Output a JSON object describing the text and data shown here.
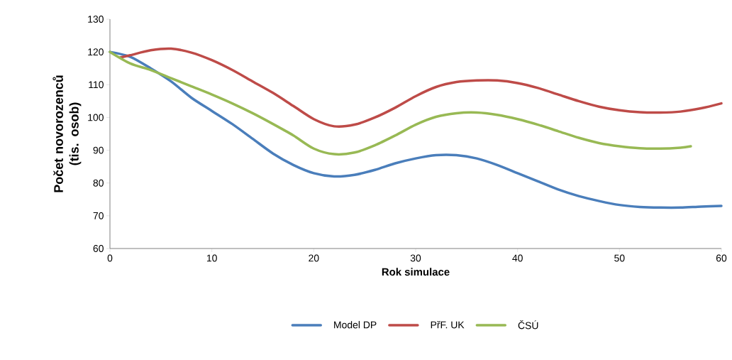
{
  "chart_data": {
    "type": "line",
    "xlabel": "Rok simulace",
    "ylabel": "Počet novorozenců (tis. osob)",
    "xlim": [
      0,
      60
    ],
    "xticks": [
      0,
      10,
      20,
      30,
      40,
      50,
      60
    ],
    "ylim": [
      60,
      130
    ],
    "yticks": [
      60,
      70,
      80,
      90,
      100,
      110,
      120,
      130
    ],
    "grid": false,
    "legend": "bottom",
    "marker": "none",
    "line_style": "solid",
    "series": [
      {
        "name": "Model DP",
        "color": "#4a7ebb",
        "x": [
          0,
          2,
          4,
          6,
          8,
          10,
          12,
          14,
          16,
          18,
          20,
          22,
          24,
          26,
          28,
          30,
          32,
          34,
          36,
          38,
          40,
          42,
          44,
          46,
          48,
          50,
          52,
          54,
          56,
          58,
          60
        ],
        "values": [
          120,
          118.5,
          115,
          111,
          106,
          102,
          98,
          93.5,
          89,
          85.5,
          83,
          82,
          82.5,
          84,
          86,
          87.5,
          88.5,
          88.5,
          87.5,
          85.5,
          83,
          80.5,
          78,
          76,
          74.5,
          73.3,
          72.7,
          72.5,
          72.5,
          72.8,
          73
        ]
      },
      {
        "name": "PřF. UK",
        "color": "#be4b48",
        "x": [
          1,
          2,
          4,
          6,
          8,
          10,
          12,
          14,
          16,
          18,
          20,
          22,
          24,
          26,
          28,
          30,
          32,
          34,
          36,
          38,
          40,
          42,
          44,
          46,
          48,
          50,
          52,
          54,
          56,
          58,
          60
        ],
        "values": [
          118.3,
          119,
          120.5,
          121,
          119.8,
          117.5,
          114.5,
          111,
          107.5,
          103.5,
          99.5,
          97.3,
          97.8,
          100,
          103,
          106.5,
          109.3,
          110.8,
          111.3,
          111.3,
          110.5,
          109,
          107,
          105,
          103.3,
          102.2,
          101.6,
          101.5,
          101.8,
          102.8,
          104.3
        ]
      },
      {
        "name": "ČSÚ",
        "color": "#98b954",
        "x": [
          0,
          2,
          4,
          6,
          8,
          10,
          12,
          14,
          16,
          18,
          20,
          22,
          24,
          26,
          28,
          30,
          32,
          34,
          36,
          38,
          40,
          42,
          44,
          46,
          48,
          50,
          52,
          54,
          56,
          57
        ],
        "values": [
          120,
          116.5,
          114.5,
          112,
          109.5,
          107,
          104.3,
          101.3,
          98,
          94.5,
          90.5,
          88.8,
          89.3,
          91.5,
          94.5,
          97.8,
          100.2,
          101.3,
          101.5,
          100.8,
          99.5,
          97.8,
          95.8,
          93.8,
          92.2,
          91.2,
          90.6,
          90.5,
          90.8,
          91.2
        ]
      }
    ]
  }
}
